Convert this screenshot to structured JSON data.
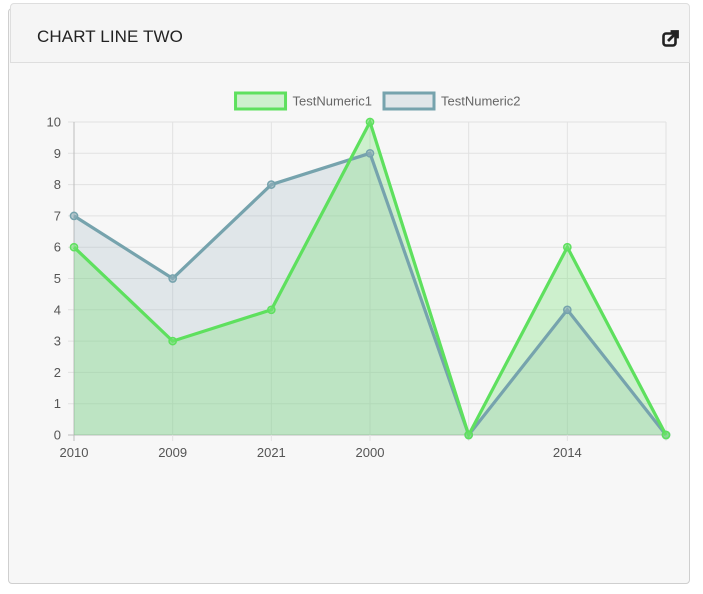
{
  "panel": {
    "title": "CHART LINE TWO",
    "popout_icon": "external-link-icon"
  },
  "chart_data": {
    "type": "line",
    "categories": [
      "2010",
      "2009",
      "2021",
      "2000",
      "",
      "2014",
      ""
    ],
    "series": [
      {
        "name": "TestNumeric1",
        "values": [
          6,
          3,
          4,
          10,
          0,
          6,
          0
        ],
        "color": "#5ee05e",
        "fill": "rgba(110, 225, 110, 0.30)"
      },
      {
        "name": "TestNumeric2",
        "values": [
          7,
          5,
          8,
          9,
          0,
          4,
          0
        ],
        "color": "#76a3ad",
        "fill": "rgba(145, 175, 185, 0.22)"
      }
    ],
    "ylim": [
      0,
      10
    ],
    "yticks": [
      0,
      1,
      2,
      3,
      4,
      5,
      6,
      7,
      8,
      9,
      10
    ],
    "grid": true,
    "legend": "top-center"
  }
}
